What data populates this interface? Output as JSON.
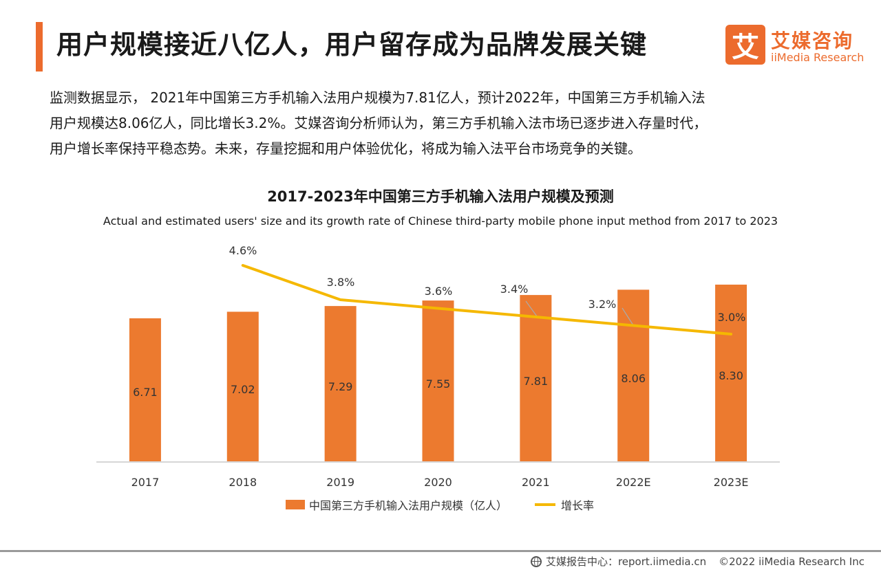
{
  "header": {
    "title": "用户规模接近八亿人，用户留存成为品牌发展关键"
  },
  "logo": {
    "mark": "艾",
    "name_cn": "艾媒咨询",
    "name_en": "iiMedia Research"
  },
  "summary": {
    "line1": "监测数据显示，  2021年中国第三方手机输入法用户规模为7.81亿人，预计2022年，中国第三方手机输入法",
    "line2": "用户规模达8.06亿人，同比增长3.2%。艾媒咨询分析师认为，第三方手机输入法市场已逐步进入存量时代，",
    "line3": "用户增长率保持平稳态势。未来，存量挖掘和用户体验优化，将成为输入法平台市场竞争的关键。"
  },
  "chart_data": {
    "type": "bar",
    "title": "2017-2023年中国第三方手机输入法用户规模及预测",
    "subtitle": "Actual and estimated users' size and its growth rate of Chinese third-party mobile phone input method from 2017 to 2023",
    "categories": [
      "2017",
      "2018",
      "2019",
      "2020",
      "2021",
      "2022E",
      "2023E"
    ],
    "series": [
      {
        "name": "中国第三方手机输入法用户规模（亿人）",
        "type": "bar",
        "color": "#ec7a2f",
        "values": [
          6.71,
          7.02,
          7.29,
          7.55,
          7.81,
          8.06,
          8.3
        ],
        "labels": [
          "6.71",
          "7.02",
          "7.29",
          "7.55",
          "7.81",
          "8.06",
          "8.30"
        ]
      },
      {
        "name": "增长率",
        "type": "line",
        "color": "#f5b800",
        "values": [
          null,
          4.6,
          3.8,
          3.6,
          3.4,
          3.2,
          3.0
        ],
        "labels": [
          "",
          "4.6%",
          "3.8%",
          "3.6%",
          "3.4%",
          "3.2%",
          "3.0%"
        ]
      }
    ],
    "legend_position": "bottom",
    "grid": false
  },
  "footer": {
    "source": "艾媒报告中心：report.iimedia.cn",
    "copyright": "©2022 iiMedia Research Inc"
  }
}
